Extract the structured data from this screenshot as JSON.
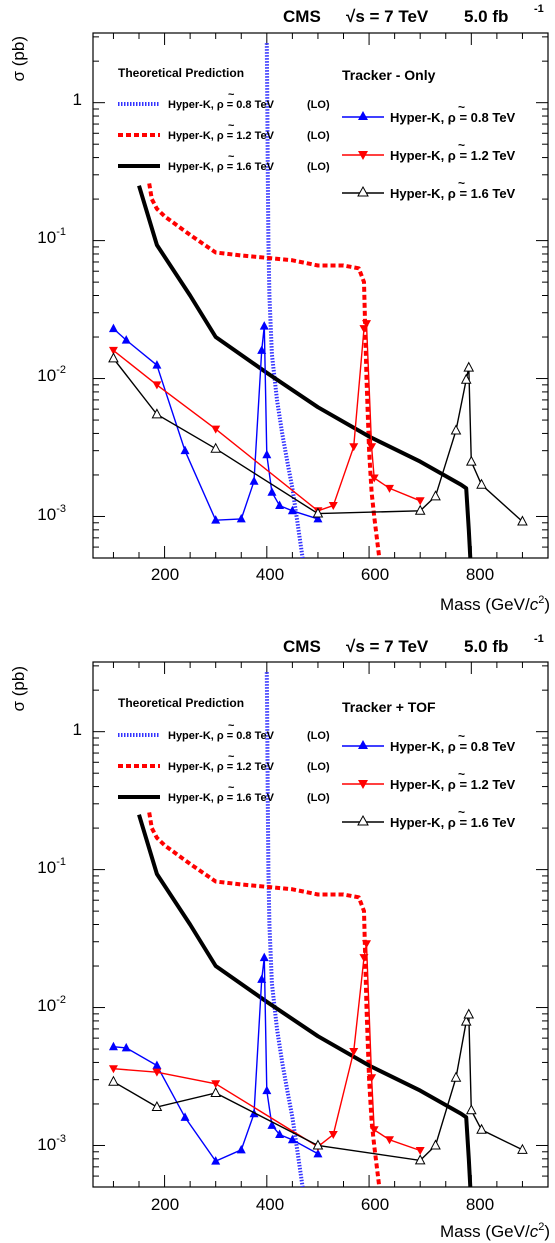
{
  "chart_data": [
    {
      "type": "line",
      "header": {
        "experiment": "CMS",
        "energy": "√s = 7 TeV",
        "lumi": "5.0 fb",
        "lumi_exp": "-1"
      },
      "xlabel": "Mass (GeV/c²)",
      "xlabel_parts": {
        "main": "Mass (GeV/",
        "unit": "c",
        "sup": "2",
        "close": ")"
      },
      "ylabel": "σ (pb)",
      "xlim": [
        60,
        950
      ],
      "ylim": [
        0.0005,
        3.2
      ],
      "y_scale": "log",
      "x_ticks": [
        "200",
        "400",
        "600",
        "800"
      ],
      "y_ticks": [
        {
          "base": "10",
          "exp": "-3"
        },
        {
          "base": "10",
          "exp": "-2"
        },
        {
          "base": "10",
          "exp": "-1"
        },
        {
          "base": "1",
          "exp": ""
        }
      ],
      "legend_left_title": "Theoretical Prediction",
      "legend_right_title": "Tracker - Only",
      "theory": [
        {
          "name": "Hyper-K, ρ̃ = 0.8 TeV (LO)",
          "label_main": "Hyper-K, ",
          "label_sym": "ρ",
          "label_rest": " = 0.8 TeV",
          "label_tag": "(LO)",
          "color": "#3333ff",
          "style": "dotted",
          "x": [
            400,
            401,
            402,
            403,
            405,
            410,
            420,
            430,
            440,
            450,
            460,
            470
          ],
          "y": [
            2.7,
            1.0,
            0.3,
            0.1,
            0.04,
            0.015,
            0.007,
            0.004,
            0.0025,
            0.0016,
            0.0009,
            0.0005
          ]
        },
        {
          "name": "Hyper-K, ρ̃ = 1.2 TeV (LO)",
          "label_main": "Hyper-K, ",
          "label_sym": "ρ",
          "label_rest": " = 1.2 TeV",
          "label_tag": "(LO)",
          "color": "#ff0000",
          "style": "dashed",
          "x": [
            170,
            175,
            185,
            200,
            250,
            300,
            350,
            400,
            450,
            500,
            550,
            580,
            590,
            595,
            600,
            605,
            610,
            620
          ],
          "y": [
            0.26,
            0.2,
            0.17,
            0.15,
            0.11,
            0.082,
            0.078,
            0.075,
            0.072,
            0.066,
            0.066,
            0.063,
            0.05,
            0.01,
            0.003,
            0.0015,
            0.001,
            0.0005
          ]
        },
        {
          "name": "Hyper-K, ρ̃ = 1.6 TeV (LO)",
          "label_main": "Hyper-K, ",
          "label_sym": "ρ",
          "label_rest": " = 1.6 TeV",
          "label_tag": "(LO)",
          "color": "#000000",
          "style": "solid",
          "x": [
            150,
            185,
            250,
            300,
            400,
            500,
            600,
            700,
            780,
            790,
            795,
            798
          ],
          "y": [
            0.25,
            0.093,
            0.04,
            0.02,
            0.011,
            0.0062,
            0.0038,
            0.0025,
            0.0017,
            0.0016,
            0.0008,
            0.0005
          ]
        }
      ],
      "series": [
        {
          "name": "Hyper-K, ρ̃ = 0.8 TeV",
          "label_main": "Hyper-K, ",
          "label_sym": "ρ",
          "label_rest": " = 0.8 TeV",
          "color": "#0000ff",
          "marker": "triangle-up",
          "x": [
            100,
            125,
            185,
            240,
            300,
            350,
            375,
            390,
            395,
            400,
            410,
            425,
            450,
            500
          ],
          "y": [
            0.023,
            0.019,
            0.0125,
            0.003,
            0.00094,
            0.00096,
            0.0018,
            0.016,
            0.024,
            0.0028,
            0.0015,
            0.0012,
            0.0011,
            0.00096
          ]
        },
        {
          "name": "Hyper-K, ρ̃ = 1.2 TeV",
          "label_main": "Hyper-K, ",
          "label_sym": "ρ",
          "label_rest": " = 1.2 TeV",
          "color": "#ff0000",
          "marker": "triangle-down",
          "x": [
            100,
            185,
            300,
            500,
            530,
            570,
            590,
            595,
            605,
            610,
            640,
            700
          ],
          "y": [
            0.016,
            0.009,
            0.0043,
            0.0011,
            0.0012,
            0.0032,
            0.023,
            0.025,
            0.0032,
            0.0019,
            0.0016,
            0.0013
          ]
        },
        {
          "name": "Hyper-K, ρ̃ = 1.6 TeV",
          "label_main": "Hyper-K, ",
          "label_sym": "ρ",
          "label_rest": " = 1.6 TeV",
          "color": "#000000",
          "marker": "triangle-open",
          "x": [
            100,
            185,
            300,
            500,
            700,
            730,
            770,
            790,
            795,
            800,
            820,
            900
          ],
          "y": [
            0.014,
            0.0055,
            0.0031,
            0.00105,
            0.0011,
            0.0014,
            0.0042,
            0.0098,
            0.012,
            0.0025,
            0.0017,
            0.00092
          ]
        }
      ]
    },
    {
      "type": "line",
      "header": {
        "experiment": "CMS",
        "energy": "√s = 7 TeV",
        "lumi": "5.0 fb",
        "lumi_exp": "-1"
      },
      "xlabel": "Mass (GeV/c²)",
      "xlabel_parts": {
        "main": "Mass (GeV/",
        "unit": "c",
        "sup": "2",
        "close": ")"
      },
      "ylabel": "σ (pb)",
      "xlim": [
        60,
        950
      ],
      "ylim": [
        0.0005,
        3.2
      ],
      "y_scale": "log",
      "x_ticks": [
        "200",
        "400",
        "600",
        "800"
      ],
      "y_ticks": [
        {
          "base": "10",
          "exp": "-3"
        },
        {
          "base": "10",
          "exp": "-2"
        },
        {
          "base": "10",
          "exp": "-1"
        },
        {
          "base": "1",
          "exp": ""
        }
      ],
      "legend_left_title": "Theoretical Prediction",
      "legend_right_title": "Tracker + TOF",
      "theory": [
        {
          "name": "Hyper-K, ρ̃ = 0.8 TeV (LO)",
          "label_main": "Hyper-K, ",
          "label_sym": "ρ",
          "label_rest": " = 0.8 TeV",
          "label_tag": "(LO)",
          "color": "#3333ff",
          "style": "dotted",
          "x": [
            400,
            401,
            402,
            403,
            405,
            410,
            420,
            430,
            440,
            450,
            460,
            470
          ],
          "y": [
            2.7,
            1.0,
            0.3,
            0.1,
            0.04,
            0.015,
            0.007,
            0.004,
            0.0025,
            0.0016,
            0.0009,
            0.0005
          ]
        },
        {
          "name": "Hyper-K, ρ̃ = 1.2 TeV (LO)",
          "label_main": "Hyper-K, ",
          "label_sym": "ρ",
          "label_rest": " = 1.2 TeV",
          "label_tag": "(LO)",
          "color": "#ff0000",
          "style": "dashed",
          "x": [
            170,
            175,
            185,
            200,
            250,
            300,
            350,
            400,
            450,
            500,
            550,
            580,
            590,
            595,
            600,
            605,
            610,
            620
          ],
          "y": [
            0.26,
            0.2,
            0.17,
            0.15,
            0.11,
            0.082,
            0.078,
            0.075,
            0.072,
            0.066,
            0.066,
            0.063,
            0.05,
            0.01,
            0.003,
            0.0015,
            0.001,
            0.0005
          ]
        },
        {
          "name": "Hyper-K, ρ̃ = 1.6 TeV (LO)",
          "label_main": "Hyper-K, ",
          "label_sym": "ρ",
          "label_rest": " = 1.6 TeV",
          "label_tag": "(LO)",
          "color": "#000000",
          "style": "solid",
          "x": [
            150,
            185,
            250,
            300,
            400,
            500,
            600,
            700,
            780,
            790,
            795,
            798
          ],
          "y": [
            0.25,
            0.093,
            0.04,
            0.02,
            0.011,
            0.0062,
            0.0038,
            0.0025,
            0.0017,
            0.0016,
            0.0008,
            0.0005
          ]
        }
      ],
      "series": [
        {
          "name": "Hyper-K, ρ̃ = 0.8 TeV",
          "label_main": "Hyper-K, ",
          "label_sym": "ρ",
          "label_rest": " = 0.8 TeV",
          "color": "#0000ff",
          "marker": "triangle-up",
          "x": [
            100,
            125,
            185,
            240,
            300,
            350,
            375,
            390,
            395,
            400,
            410,
            425,
            450,
            500
          ],
          "y": [
            0.0052,
            0.0051,
            0.0038,
            0.0016,
            0.00077,
            0.00093,
            0.0017,
            0.016,
            0.023,
            0.0025,
            0.0014,
            0.0012,
            0.0011,
            0.00087
          ]
        },
        {
          "name": "Hyper-K, ρ̃ = 1.2 TeV",
          "label_main": "Hyper-K, ",
          "label_sym": "ρ",
          "label_rest": " = 1.2 TeV",
          "color": "#ff0000",
          "marker": "triangle-down",
          "x": [
            100,
            185,
            300,
            500,
            530,
            570,
            590,
            595,
            605,
            610,
            640,
            700
          ],
          "y": [
            0.0036,
            0.0034,
            0.0028,
            0.00098,
            0.0012,
            0.0048,
            0.023,
            0.029,
            0.0031,
            0.0013,
            0.0011,
            0.00092
          ]
        },
        {
          "name": "Hyper-K, ρ̃ = 1.6 TeV",
          "label_main": "Hyper-K, ",
          "label_sym": "ρ",
          "label_rest": " = 1.6 TeV",
          "color": "#000000",
          "marker": "triangle-open",
          "x": [
            100,
            185,
            300,
            500,
            700,
            730,
            770,
            790,
            795,
            800,
            820,
            900
          ],
          "y": [
            0.0029,
            0.0019,
            0.0024,
            0.001,
            0.00078,
            0.001,
            0.0031,
            0.0079,
            0.0089,
            0.0018,
            0.0013,
            0.00093
          ]
        }
      ]
    }
  ]
}
